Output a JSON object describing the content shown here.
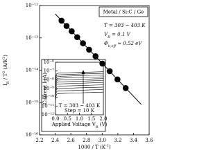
{
  "chart_data": [
    {
      "type": "scatter",
      "log_y": true,
      "xlabel": [
        {
          "text": "1000 / T (K"
        },
        {
          "text": "-1",
          "shift": "super"
        },
        {
          "text": ")"
        }
      ],
      "ylabel": [
        {
          "text": "I"
        },
        {
          "text": "R",
          "shift": "sub"
        },
        {
          "text": " / T"
        },
        {
          "text": "2",
          "shift": "super"
        },
        {
          "text": " (A/K"
        },
        {
          "text": "2",
          "shift": "super"
        },
        {
          "text": ")"
        }
      ],
      "xlim": [
        2.2,
        3.6
      ],
      "xticks": [
        {
          "value": 2.2,
          "label": "2.2"
        },
        {
          "value": 2.4,
          "label": "2.4"
        },
        {
          "value": 2.6,
          "label": "2.6"
        },
        {
          "value": 2.8,
          "label": "2.8"
        },
        {
          "value": 3.0,
          "label": "3.0"
        },
        {
          "value": 3.2,
          "label": "3.2"
        },
        {
          "value": 3.4,
          "label": "3.4"
        },
        {
          "value": 3.6,
          "label": "3.6"
        }
      ],
      "ylim": [
        1e-16,
        1e-12
      ],
      "yticks": [
        {
          "value": 1e-16,
          "label": "10⁻¹⁶"
        },
        {
          "value": 1e-15,
          "label": "10⁻¹⁵"
        },
        {
          "value": 1e-14,
          "label": "10⁻¹⁴"
        },
        {
          "value": 1e-13,
          "label": "10⁻¹³"
        },
        {
          "value": 1e-12,
          "label": "10⁻¹²"
        }
      ],
      "color": "#000000",
      "x": [
        2.481,
        2.545,
        2.611,
        2.681,
        2.755,
        2.833,
        2.915,
        3.003,
        3.096,
        3.195,
        3.3
      ],
      "values": [
        3.39e-13,
        2.33e-13,
        1.6e-13,
        1.05e-13,
        6.8e-14,
        4.3e-14,
        2.7e-14,
        1.6e-14,
        9.3e-15,
        5.2e-15,
        2.8e-15
      ],
      "fit": {
        "x": [
          2.4,
          3.5
        ],
        "values": [
          5.5e-13,
          8.7e-16
        ]
      },
      "legend_box": "Metal / Si:C / Ge",
      "annotations": [
        [
          {
            "text": "T = 303 ~ 403 K"
          }
        ],
        [
          {
            "text": "V"
          },
          {
            "text": "R",
            "shift": "sub"
          },
          {
            "text": " = 0.1 V"
          }
        ],
        [
          {
            "text": "Φ"
          },
          {
            "text": "b,eff",
            "shift": "sub"
          },
          {
            "text": " ≈ 0.52 eV"
          }
        ]
      ]
    },
    {
      "type": "line",
      "log_y": true,
      "xlabel": [
        {
          "text": "Applied Voltage "
        },
        {
          "text": "V"
        },
        {
          "text": "R",
          "shift": "sub"
        },
        {
          "text": " (V)"
        }
      ],
      "ylabel": [
        {
          "text": "Current "
        },
        {
          "text": "I"
        },
        {
          "text": " (A)"
        }
      ],
      "xlim": [
        0,
        2.0
      ],
      "xticks": [
        {
          "value": 0,
          "label": "0.0"
        },
        {
          "value": 0.5,
          "label": "0.5"
        },
        {
          "value": 1.0,
          "label": "1.0"
        },
        {
          "value": 1.5,
          "label": "1.5"
        },
        {
          "value": 2.0,
          "label": "2.0"
        }
      ],
      "ylim": [
        1e-12,
        1e-06
      ],
      "yticks": [
        {
          "value": 1e-12,
          "label": "10⁻¹²"
        },
        {
          "value": 1e-11,
          "label": "10⁻¹¹"
        },
        {
          "value": 1e-10,
          "label": "10⁻¹⁰"
        },
        {
          "value": 1e-09,
          "label": "10⁻⁹"
        },
        {
          "value": 1e-08,
          "label": "10⁻⁸"
        },
        {
          "value": 1e-07,
          "label": "10⁻⁷"
        },
        {
          "value": 1e-06,
          "label": "10⁻⁶"
        }
      ],
      "color": "#000000",
      "x": [
        0.005,
        0.02,
        0.05,
        0.1,
        0.2,
        0.5,
        1.0,
        1.5,
        2.0
      ],
      "series": [
        {
          "values": [
            4.5e-11,
            1.39e-10,
            2.22e-10,
            2.57e-10,
            2.7e-10,
            2.89e-10,
            3.21e-10,
            3.53e-10,
            3.86e-10
          ]
        },
        {
          "values": [
            8.9e-11,
            2.75e-10,
            4.41e-10,
            5.1e-10,
            5.36e-10,
            5.74e-10,
            6.38e-10,
            7.01e-10,
            7.65e-10
          ]
        },
        {
          "values": [
            1.7e-10,
            5.24e-10,
            8.39e-10,
            9.7e-10,
            1.02e-09,
            1.09e-09,
            1.21e-09,
            1.33e-09,
            1.46e-09
          ]
        },
        {
          "values": [
            3.1e-10,
            9.56e-10,
            1.53e-09,
            1.77e-09,
            1.86e-09,
            1.99e-09,
            2.21e-09,
            2.43e-09,
            2.66e-09
          ]
        },
        {
          "values": [
            5.6e-10,
            1.73e-09,
            2.77e-09,
            3.2e-09,
            3.36e-09,
            3.6e-09,
            4e-09,
            4.4e-09,
            4.8e-09
          ]
        },
        {
          "values": [
            9.5e-10,
            2.92e-09,
            4.67e-09,
            5.4e-09,
            5.67e-09,
            6.08e-09,
            6.75e-09,
            7.43e-09,
            8.1e-09
          ]
        },
        {
          "values": [
            1.58e-09,
            4.86e-09,
            7.79e-09,
            9e-09,
            9.45e-09,
            1.01e-08,
            1.13e-08,
            1.24e-08,
            1.35e-08
          ]
        },
        {
          "values": [
            2.56e-09,
            7.88e-09,
            1.26e-08,
            1.46e-08,
            1.53e-08,
            1.64e-08,
            1.83e-08,
            2.01e-08,
            2.19e-08
          ]
        },
        {
          "values": [
            4.1e-09,
            1.27e-08,
            2.03e-08,
            2.35e-08,
            2.47e-08,
            2.64e-08,
            2.94e-08,
            3.23e-08,
            3.53e-08
          ]
        },
        {
          "values": [
            6.3e-09,
            1.94e-08,
            3.11e-08,
            3.6e-08,
            3.78e-08,
            4.05e-08,
            4.5e-08,
            4.95e-08,
            5.4e-08
          ]
        },
        {
          "values": [
            9.6e-09,
            2.97e-08,
            4.76e-08,
            5.5e-08,
            5.78e-08,
            6.19e-08,
            6.88e-08,
            7.56e-08,
            8.25e-08
          ]
        }
      ],
      "annotations": [
        [
          {
            "text": "T = 303 ~ 403 K"
          }
        ],
        [
          {
            "text": "Step = 10 K"
          }
        ]
      ]
    }
  ]
}
